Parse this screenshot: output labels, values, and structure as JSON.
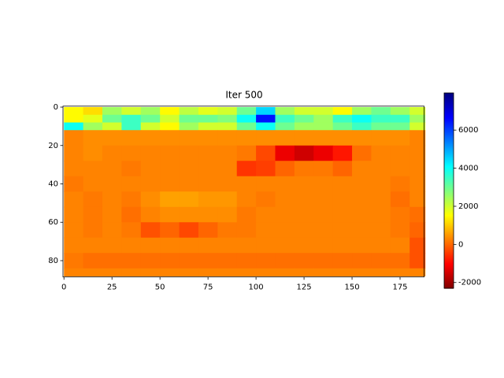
{
  "chart_data": {
    "type": "heatmap",
    "title": "Iter 500",
    "colormap": "jet_r",
    "clim": [
      -2300,
      7950
    ],
    "x_bins": [
      0,
      10,
      20,
      30,
      40,
      50,
      60,
      70,
      80,
      90,
      100,
      110,
      120,
      130,
      140,
      150,
      160,
      170,
      180,
      188
    ],
    "y_bins": [
      0,
      4,
      8,
      12,
      20,
      28,
      36,
      44,
      52,
      60,
      68,
      76,
      84,
      88
    ],
    "values": [
      [
        1500,
        1200,
        2500,
        2000,
        2500,
        1500,
        2200,
        1800,
        2000,
        3000,
        4500,
        2500,
        2000,
        2000,
        1500,
        2500,
        3000,
        2500,
        2000
      ],
      [
        1500,
        1800,
        3000,
        3500,
        3000,
        2000,
        3000,
        3000,
        2800,
        4000,
        6500,
        3500,
        3000,
        2500,
        3500,
        4000,
        3500,
        3500,
        2500
      ],
      [
        4000,
        2500,
        2000,
        3500,
        2000,
        1500,
        2500,
        2000,
        2000,
        3000,
        4000,
        3000,
        2500,
        2500,
        3000,
        3500,
        3000,
        3000,
        2000
      ],
      [
        300,
        400,
        400,
        400,
        400,
        400,
        400,
        400,
        400,
        400,
        400,
        400,
        400,
        400,
        400,
        400,
        400,
        400,
        300
      ],
      [
        300,
        400,
        300,
        300,
        300,
        300,
        300,
        300,
        300,
        200,
        -300,
        -1200,
        -1500,
        -1200,
        -800,
        100,
        300,
        300,
        300
      ],
      [
        300,
        300,
        300,
        200,
        300,
        300,
        300,
        300,
        300,
        -500,
        -400,
        0,
        200,
        200,
        0,
        300,
        300,
        300,
        300
      ],
      [
        200,
        300,
        300,
        300,
        300,
        300,
        300,
        300,
        300,
        300,
        300,
        300,
        300,
        300,
        300,
        300,
        300,
        200,
        300
      ],
      [
        300,
        200,
        300,
        200,
        400,
        600,
        600,
        500,
        500,
        300,
        200,
        300,
        300,
        300,
        300,
        300,
        300,
        100,
        300
      ],
      [
        300,
        200,
        300,
        100,
        300,
        400,
        400,
        400,
        400,
        200,
        300,
        300,
        300,
        300,
        300,
        300,
        300,
        200,
        100
      ],
      [
        300,
        200,
        300,
        200,
        -200,
        0,
        -300,
        0,
        200,
        200,
        300,
        300,
        300,
        300,
        300,
        300,
        300,
        200,
        0
      ],
      [
        300,
        300,
        300,
        300,
        300,
        300,
        300,
        300,
        300,
        300,
        300,
        300,
        300,
        300,
        300,
        300,
        300,
        300,
        -200
      ],
      [
        200,
        100,
        100,
        100,
        100,
        100,
        100,
        100,
        100,
        100,
        100,
        100,
        100,
        100,
        100,
        100,
        100,
        100,
        -200
      ],
      [
        300,
        300,
        300,
        300,
        300,
        300,
        300,
        300,
        300,
        300,
        300,
        300,
        300,
        300,
        300,
        300,
        300,
        300,
        300
      ]
    ],
    "xlim": [
      -0.5,
      187.5
    ],
    "ylim": [
      88.5,
      -0.5
    ],
    "xticks": [
      0,
      25,
      50,
      75,
      100,
      125,
      150,
      175
    ],
    "yticks": [
      0,
      20,
      40,
      60,
      80
    ],
    "colorbar_ticks": [
      -2000,
      0,
      2000,
      4000,
      6000
    ]
  }
}
